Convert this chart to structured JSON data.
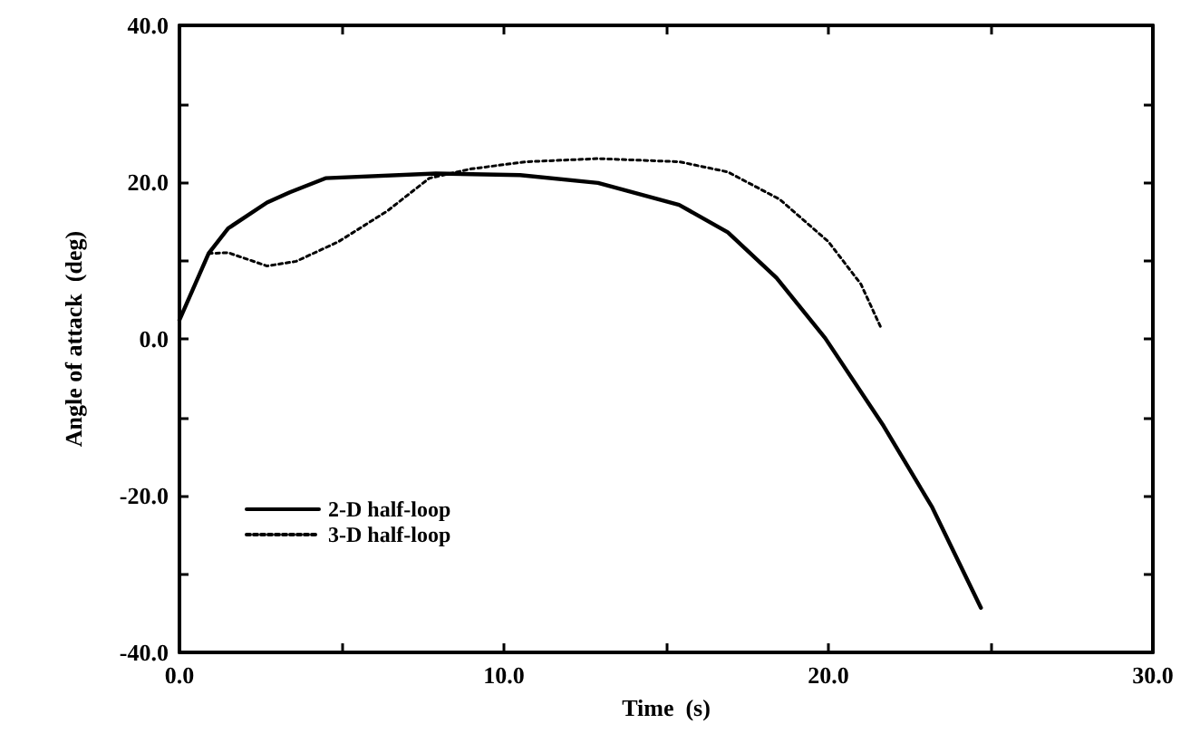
{
  "chart_data": {
    "type": "line",
    "xlabel": "Time  (s)",
    "ylabel": "Angle of attack  (deg)",
    "xlim": [
      0,
      30
    ],
    "xticks": [
      {
        "value": 0,
        "label": "0.0"
      },
      {
        "value": 5,
        "label": null
      },
      {
        "value": 10,
        "label": "10.0"
      },
      {
        "value": 15,
        "label": null
      },
      {
        "value": 20,
        "label": "20.0"
      },
      {
        "value": 25,
        "label": null
      },
      {
        "value": 30,
        "label": "30.0"
      }
    ],
    "ylim": [
      -40,
      40
    ],
    "yticks": [
      {
        "value": -40,
        "label": "-40.0"
      },
      {
        "value": -30,
        "label": null
      },
      {
        "value": -20,
        "label": "-20.0"
      },
      {
        "value": -10,
        "label": null
      },
      {
        "value": 0,
        "label": "0.0"
      },
      {
        "value": 10,
        "label": null
      },
      {
        "value": 20,
        "label": "20.0"
      },
      {
        "value": 30,
        "label": null
      },
      {
        "value": 40,
        "label": "40.0"
      }
    ],
    "grid": false,
    "legend": "bottom left",
    "marker": "none",
    "series": [
      {
        "name": "2-D half-loop",
        "color": "#000000",
        "line_style": "solid",
        "x": [
          0,
          0.9,
          1.5,
          2.7,
          3.4,
          4.5,
          7.9,
          10.5,
          12.9,
          15.4,
          16.9,
          18.4,
          19.9,
          21.7,
          23.2,
          24.7
        ],
        "values": [
          2.4,
          10.9,
          14.1,
          17.4,
          18.7,
          20.5,
          21.1,
          20.9,
          19.9,
          17.1,
          13.6,
          7.8,
          0.1,
          -11.1,
          -21.5,
          -34.3
        ]
      },
      {
        "name": "3-D half-loop",
        "color": "#000000",
        "line_style": "dotted",
        "x": [
          0.9,
          1.5,
          2.7,
          3.6,
          4.9,
          6.4,
          7.7,
          9.0,
          10.7,
          12.9,
          15.4,
          16.9,
          18.5,
          20.0,
          21.0,
          21.6
        ],
        "values": [
          10.9,
          11.0,
          9.3,
          9.9,
          12.4,
          16.3,
          20.5,
          21.7,
          22.6,
          23.0,
          22.6,
          21.3,
          17.8,
          12.4,
          7.0,
          1.6
        ]
      }
    ]
  }
}
